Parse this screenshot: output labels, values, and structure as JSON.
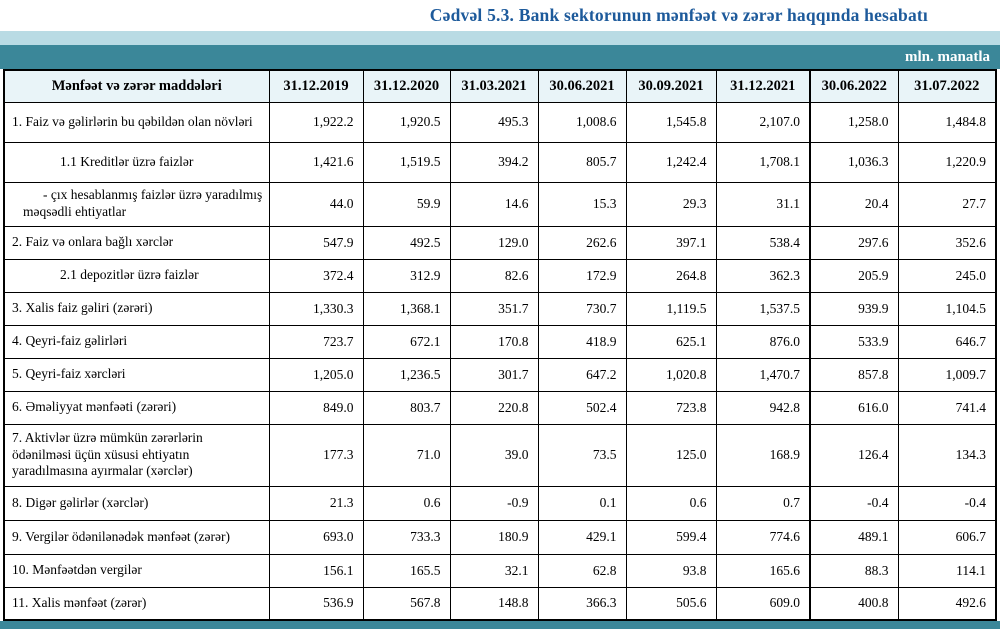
{
  "title": "Cədvəl 5.3. Bank sektorunun mənfəət və zərər haqqında hesabatı",
  "unit_label": "mln. manatla",
  "colors": {
    "title_blue": "#1d5a9b",
    "band_light_blue": "#b9dbe4",
    "band_teal": "#3b8799",
    "header_row_bg": "#e9f4f8"
  },
  "chart_data": {
    "type": "table",
    "title": "Cədvəl 5.3. Bank sektorunun mənfəət və zərər haqqında hesabatı",
    "unit": "mln. manatla",
    "header_label": "Mənfəət və zərər maddələri",
    "columns": [
      "31.12.2019",
      "31.12.2020",
      "31.03.2021",
      "30.06.2021",
      "30.09.2021",
      "31.12.2021",
      "30.06.2022",
      "31.07.2022"
    ],
    "rows": [
      {
        "label": "1. Faiz və gəlirlərin bu qəbildən olan növləri",
        "indent": 0,
        "values": [
          "1,922.2",
          "1,920.5",
          "495.3",
          "1,008.6",
          "1,545.8",
          "2,107.0",
          "1,258.0",
          "1,484.8"
        ]
      },
      {
        "label": "1.1 Kreditlər üzrə faizlər",
        "indent": 1,
        "values": [
          "1,421.6",
          "1,519.5",
          "394.2",
          "805.7",
          "1,242.4",
          "1,708.1",
          "1,036.3",
          "1,220.9"
        ]
      },
      {
        "label": "-  çıx hesablanmış faizlər üzrə yaradılmış məqsədli ehtiyatlar",
        "indent": 2,
        "values": [
          "44.0",
          "59.9",
          "14.6",
          "15.3",
          "29.3",
          "31.1",
          "20.4",
          "27.7"
        ]
      },
      {
        "label": "2. Faiz və onlara bağlı xərclər",
        "indent": 0,
        "values": [
          "547.9",
          "492.5",
          "129.0",
          "262.6",
          "397.1",
          "538.4",
          "297.6",
          "352.6"
        ]
      },
      {
        "label": "2.1 depozitlər üzrə faizlər",
        "indent": 1,
        "values": [
          "372.4",
          "312.9",
          "82.6",
          "172.9",
          "264.8",
          "362.3",
          "205.9",
          "245.0"
        ]
      },
      {
        "label": "3. Xalis faiz gəliri (zərəri)",
        "indent": 0,
        "values": [
          "1,330.3",
          "1,368.1",
          "351.7",
          "730.7",
          "1,119.5",
          "1,537.5",
          "939.9",
          "1,104.5"
        ]
      },
      {
        "label": "4. Qeyri-faiz gəlirləri",
        "indent": 0,
        "values": [
          "723.7",
          "672.1",
          "170.8",
          "418.9",
          "625.1",
          "876.0",
          "533.9",
          "646.7"
        ]
      },
      {
        "label": "5. Qeyri-faiz xərcləri",
        "indent": 0,
        "values": [
          "1,205.0",
          "1,236.5",
          "301.7",
          "647.2",
          "1,020.8",
          "1,470.7",
          "857.8",
          "1,009.7"
        ]
      },
      {
        "label": "6. Əməliyyat mənfəəti (zərəri)",
        "indent": 0,
        "values": [
          "849.0",
          "803.7",
          "220.8",
          "502.4",
          "723.8",
          "942.8",
          "616.0",
          "741.4"
        ]
      },
      {
        "label": "7. Aktivlər üzrə mümkün zərərlərin ödənilməsi üçün xüsusi ehtiyatın yaradılmasına ayırmalar (xərclər)",
        "indent": 0,
        "values": [
          "177.3",
          "71.0",
          "39.0",
          "73.5",
          "125.0",
          "168.9",
          "126.4",
          "134.3"
        ]
      },
      {
        "label": "8. Digər gəlirlər (xərclər)",
        "indent": 0,
        "values": [
          "21.3",
          "0.6",
          "-0.9",
          "0.1",
          "0.6",
          "0.7",
          "-0.4",
          "-0.4"
        ]
      },
      {
        "label": "9. Vergilər ödənilənədək mənfəət (zərər)",
        "indent": 0,
        "values": [
          "693.0",
          "733.3",
          "180.9",
          "429.1",
          "599.4",
          "774.6",
          "489.1",
          "606.7"
        ]
      },
      {
        "label": "10. Mənfəətdən vergilər",
        "indent": 0,
        "values": [
          "156.1",
          "165.5",
          "32.1",
          "62.8",
          "93.8",
          "165.6",
          "88.3",
          "114.1"
        ]
      },
      {
        "label": "11. Xalis mənfəət (zərər)",
        "indent": 0,
        "values": [
          "536.9",
          "567.8",
          "148.8",
          "366.3",
          "505.6",
          "609.0",
          "400.8",
          "492.6"
        ]
      }
    ]
  }
}
